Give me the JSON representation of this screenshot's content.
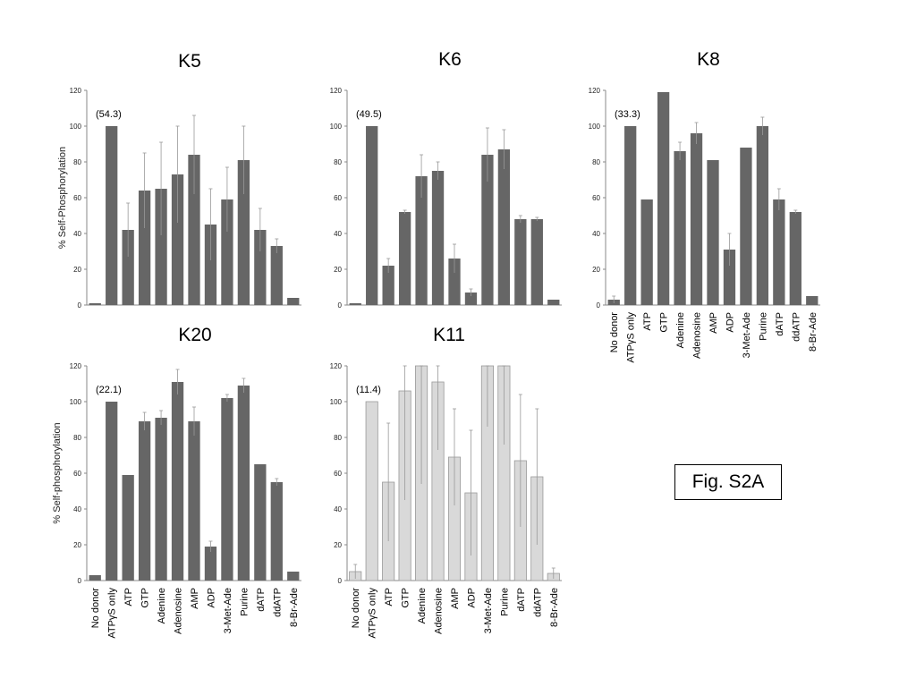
{
  "figure_label": "Fig. S2A",
  "chart_data": [
    {
      "type": "bar",
      "title": "K5",
      "ylabel": "% Self-Phosphorylation",
      "ylim": [
        0,
        120
      ],
      "yticks": [
        0,
        20,
        40,
        60,
        80,
        100,
        120
      ],
      "annotation": "(54.3)",
      "show_category_labels": false,
      "bar_color": "#666666",
      "categories": [
        "No donor",
        "ATPγS only",
        "ATP",
        "GTP",
        "Adenine",
        "Adenosine",
        "AMP",
        "ADP",
        "3-Met-Ade",
        "Purine",
        "dATP",
        "ddATP",
        "8-Br-Ade"
      ],
      "values": [
        1,
        100,
        42,
        64,
        65,
        73,
        84,
        45,
        59,
        81,
        42,
        33,
        4
      ],
      "errors": [
        0,
        0,
        15,
        21,
        26,
        27,
        22,
        20,
        18,
        19,
        12,
        4,
        0
      ]
    },
    {
      "type": "bar",
      "title": "K6",
      "ylabel": "",
      "ylim": [
        0,
        120
      ],
      "yticks": [
        0,
        20,
        40,
        60,
        80,
        100,
        120
      ],
      "annotation": "(49.5)",
      "show_category_labels": false,
      "bar_color": "#666666",
      "categories": [
        "No donor",
        "ATPγS only",
        "ATP",
        "GTP",
        "Adenine",
        "Adenosine",
        "AMP",
        "ADP",
        "3-Met-Ade",
        "Purine",
        "dATP",
        "ddATP",
        "8-Br-Ade"
      ],
      "values": [
        1,
        100,
        22,
        52,
        72,
        75,
        26,
        7,
        84,
        87,
        48,
        48,
        3
      ],
      "errors": [
        0,
        0,
        4,
        1,
        12,
        5,
        8,
        2,
        15,
        11,
        2,
        1,
        0
      ]
    },
    {
      "type": "bar",
      "title": "K8",
      "ylabel": "",
      "ylim": [
        0,
        120
      ],
      "yticks": [
        0,
        20,
        40,
        60,
        80,
        100,
        120
      ],
      "annotation": "(33.3)",
      "show_category_labels": true,
      "bar_color": "#666666",
      "categories": [
        "No donor",
        "ATPγS only",
        "ATP",
        "GTP",
        "Adenine",
        "Adenosine",
        "AMP",
        "ADP",
        "3-Met-Ade",
        "Purine",
        "dATP",
        "ddATP",
        "8-Br-Ade"
      ],
      "values": [
        3,
        100,
        59,
        119,
        86,
        96,
        81,
        31,
        88,
        100,
        59,
        52,
        5
      ],
      "errors": [
        2,
        0,
        0,
        0,
        5,
        6,
        0,
        9,
        0,
        5,
        6,
        1,
        0
      ]
    },
    {
      "type": "bar",
      "title": "K20",
      "ylabel": "% Self-phosphorylation",
      "ylim": [
        0,
        120
      ],
      "yticks": [
        0,
        20,
        40,
        60,
        80,
        100,
        120
      ],
      "annotation": "(22.1)",
      "show_category_labels": true,
      "bar_color": "#666666",
      "categories": [
        "No donor",
        "ATPγS only",
        "ATP",
        "GTP",
        "Adenine",
        "Adenosine",
        "AMP",
        "ADP",
        "3-Met-Ade",
        "Purine",
        "dATP",
        "ddATP",
        "8-Br-Ade"
      ],
      "values": [
        3,
        100,
        59,
        89,
        91,
        111,
        89,
        19,
        102,
        109,
        65,
        55,
        5
      ],
      "errors": [
        0,
        0,
        0,
        5,
        4,
        7,
        8,
        3,
        2,
        4,
        0,
        2,
        0
      ]
    },
    {
      "type": "bar",
      "title": "K11",
      "ylabel": "",
      "ylim": [
        0,
        120
      ],
      "yticks": [
        0,
        20,
        40,
        60,
        80,
        100,
        120
      ],
      "annotation": "(11.4)",
      "show_category_labels": true,
      "bar_color": "#d9d9d9",
      "categories": [
        "No donor",
        "ATPγS only",
        "ATP",
        "GTP",
        "Adenine",
        "Adenosine",
        "AMP",
        "ADP",
        "3-Met-Ade",
        "Purine",
        "dATP",
        "ddATP",
        "8-Br-Ade"
      ],
      "values": [
        5,
        100,
        55,
        106,
        120,
        111,
        69,
        49,
        120,
        120,
        67,
        58,
        4
      ],
      "errors": [
        4,
        0,
        33,
        61,
        66,
        38,
        27,
        35,
        34,
        44,
        37,
        38,
        3
      ]
    }
  ]
}
